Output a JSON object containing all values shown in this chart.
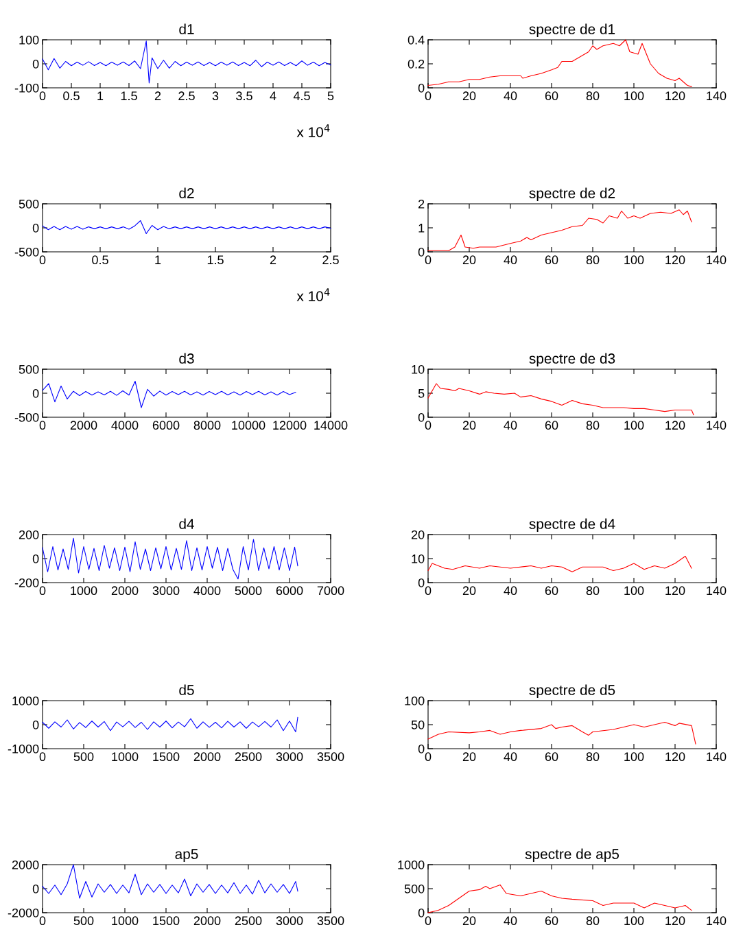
{
  "chart_data": [
    {
      "type": "line",
      "title": "d1",
      "color": "#0000ff",
      "xlim": [
        0,
        5
      ],
      "ylim": [
        -100,
        100
      ],
      "yticks": [
        -100,
        0,
        100
      ],
      "xticks": [
        0,
        0.5,
        1,
        1.5,
        2,
        2.5,
        3,
        3.5,
        4,
        4.5,
        5
      ],
      "annotations": [
        "x 10$^{4}$"
      ],
      "x": [
        0,
        0.1,
        0.2,
        0.3,
        0.4,
        0.5,
        0.6,
        0.7,
        0.8,
        0.9,
        1,
        1.1,
        1.2,
        1.3,
        1.4,
        1.5,
        1.6,
        1.7,
        1.8,
        1.85,
        1.9,
        2,
        2.1,
        2.2,
        2.3,
        2.4,
        2.5,
        2.6,
        2.7,
        2.8,
        2.9,
        3,
        3.1,
        3.2,
        3.3,
        3.4,
        3.5,
        3.6,
        3.7,
        3.8,
        3.9,
        4,
        4.1,
        4.2,
        4.3,
        4.4,
        4.5,
        4.6,
        4.7,
        4.8,
        4.9,
        5
      ],
      "values": [
        20,
        -25,
        22,
        -18,
        10,
        -8,
        7,
        -6,
        9,
        -7,
        6,
        -8,
        7,
        -6,
        8,
        -7,
        12,
        -20,
        95,
        -80,
        25,
        -20,
        15,
        -18,
        10,
        -8,
        7,
        -6,
        8,
        -7,
        6,
        -8,
        7,
        -6,
        8,
        -7,
        6,
        -8,
        15,
        -12,
        7,
        -6,
        8,
        -7,
        6,
        -8,
        12,
        -6,
        7,
        -8,
        6,
        -5
      ]
    },
    {
      "type": "line",
      "title": "spectre de d1",
      "color": "#ff0000",
      "xlim": [
        0,
        140
      ],
      "xticks": [
        0,
        20,
        40,
        60,
        80,
        100,
        120,
        140
      ],
      "ylim": [
        0,
        0.4
      ],
      "yticks": [
        0,
        0.2,
        0.4
      ],
      "x": [
        0,
        5,
        10,
        15,
        20,
        25,
        30,
        35,
        45,
        46,
        50,
        55,
        60,
        63,
        65,
        70,
        73,
        78,
        80,
        82,
        85,
        90,
        93,
        96,
        98,
        102,
        104,
        108,
        112,
        116,
        120,
        122,
        124,
        126,
        128
      ],
      "values": [
        0.02,
        0.03,
        0.05,
        0.05,
        0.07,
        0.07,
        0.09,
        0.1,
        0.1,
        0.08,
        0.1,
        0.12,
        0.15,
        0.17,
        0.22,
        0.22,
        0.25,
        0.3,
        0.35,
        0.32,
        0.35,
        0.37,
        0.35,
        0.4,
        0.3,
        0.28,
        0.37,
        0.2,
        0.12,
        0.08,
        0.06,
        0.08,
        0.05,
        0.02,
        0.01
      ]
    },
    {
      "type": "line",
      "title": "d2",
      "color": "#0000ff",
      "xlim": [
        0,
        2.5
      ],
      "ylim": [
        -500,
        500
      ],
      "yticks": [
        -500,
        0,
        500
      ],
      "xticks": [
        0,
        0.5,
        1,
        1.5,
        2,
        2.5
      ],
      "annotations": [
        "x 10$^{4}$"
      ],
      "x": [
        0,
        0.05,
        0.1,
        0.15,
        0.2,
        0.25,
        0.3,
        0.35,
        0.4,
        0.45,
        0.5,
        0.55,
        0.6,
        0.65,
        0.7,
        0.75,
        0.8,
        0.85,
        0.9,
        0.95,
        1,
        1.05,
        1.1,
        1.15,
        1.2,
        1.25,
        1.3,
        1.35,
        1.4,
        1.45,
        1.5,
        1.55,
        1.6,
        1.65,
        1.7,
        1.75,
        1.8,
        1.85,
        1.9,
        1.95,
        2,
        2.05,
        2.1,
        2.15,
        2.2,
        2.25,
        2.3,
        2.35,
        2.4,
        2.45,
        2.5
      ],
      "values": [
        40,
        -40,
        30,
        -40,
        30,
        -30,
        30,
        -30,
        20,
        -20,
        20,
        -20,
        20,
        -20,
        20,
        -30,
        40,
        150,
        -120,
        50,
        -40,
        30,
        -20,
        20,
        -20,
        20,
        -20,
        20,
        -20,
        20,
        -20,
        20,
        -20,
        20,
        -20,
        20,
        -20,
        20,
        -20,
        20,
        -20,
        20,
        -20,
        20,
        -20,
        20,
        -20,
        20,
        -20,
        20,
        -10
      ]
    },
    {
      "type": "line",
      "title": "spectre de d2",
      "color": "#ff0000",
      "xlim": [
        0,
        140
      ],
      "xticks": [
        0,
        20,
        40,
        60,
        80,
        100,
        120,
        140
      ],
      "ylim": [
        0,
        2
      ],
      "yticks": [
        0,
        1,
        2
      ],
      "x": [
        0,
        10,
        13,
        16,
        18,
        22,
        25,
        33,
        40,
        45,
        48,
        50,
        55,
        60,
        65,
        70,
        75,
        78,
        82,
        85,
        88,
        92,
        94,
        97,
        100,
        103,
        108,
        113,
        118,
        122,
        124,
        126,
        128
      ],
      "values": [
        0.05,
        0.05,
        0.2,
        0.7,
        0.2,
        0.15,
        0.2,
        0.2,
        0.35,
        0.45,
        0.6,
        0.5,
        0.7,
        0.8,
        0.9,
        1.05,
        1.1,
        1.4,
        1.35,
        1.2,
        1.5,
        1.4,
        1.7,
        1.4,
        1.5,
        1.4,
        1.6,
        1.65,
        1.6,
        1.75,
        1.55,
        1.7,
        1.25
      ]
    },
    {
      "type": "line",
      "title": "d3",
      "color": "#0000ff",
      "xlim": [
        0,
        14000
      ],
      "ylim": [
        -500,
        500
      ],
      "yticks": [
        -500,
        0,
        500
      ],
      "xticks": [
        0,
        2000,
        4000,
        6000,
        8000,
        10000,
        12000,
        14000
      ],
      "x": [
        0,
        300,
        600,
        900,
        1200,
        1500,
        1800,
        2100,
        2400,
        2700,
        3000,
        3300,
        3600,
        3900,
        4200,
        4500,
        4800,
        5100,
        5400,
        5700,
        6000,
        6300,
        6600,
        6900,
        7200,
        7500,
        7800,
        8100,
        8400,
        8700,
        9000,
        9300,
        9600,
        9900,
        10200,
        10500,
        10800,
        11100,
        11400,
        11700,
        12000,
        12300
      ],
      "values": [
        60,
        200,
        -180,
        150,
        -120,
        40,
        -50,
        35,
        -40,
        30,
        -35,
        40,
        -45,
        50,
        -40,
        250,
        -300,
        80,
        -60,
        45,
        -40,
        35,
        -30,
        40,
        -35,
        30,
        -40,
        35,
        -30,
        40,
        -35,
        30,
        -40,
        35,
        -30,
        40,
        -35,
        30,
        -40,
        35,
        -30,
        20
      ]
    },
    {
      "type": "line",
      "title": "spectre de d3",
      "color": "#ff0000",
      "xlim": [
        0,
        140
      ],
      "xticks": [
        0,
        20,
        40,
        60,
        80,
        100,
        120,
        140
      ],
      "ylim": [
        0,
        10
      ],
      "yticks": [
        0,
        5,
        10
      ],
      "x": [
        0,
        4,
        6,
        10,
        13,
        15,
        20,
        25,
        28,
        32,
        37,
        42,
        45,
        50,
        55,
        60,
        65,
        70,
        75,
        80,
        85,
        95,
        100,
        105,
        110,
        115,
        120,
        128,
        129
      ],
      "values": [
        4,
        7,
        6,
        5.8,
        5.5,
        6,
        5.5,
        4.8,
        5.3,
        5,
        4.8,
        5,
        4.2,
        4.5,
        3.8,
        3.3,
        2.5,
        3.5,
        2.8,
        2.5,
        2,
        2,
        1.8,
        1.8,
        1.5,
        1.2,
        1.5,
        1.5,
        0.5
      ]
    },
    {
      "type": "line",
      "title": "d4",
      "color": "#0000ff",
      "xlim": [
        0,
        7000
      ],
      "ylim": [
        -200,
        200
      ],
      "yticks": [
        -200,
        0,
        200
      ],
      "xticks": [
        0,
        1000,
        2000,
        3000,
        4000,
        5000,
        6000,
        7000
      ],
      "x": [
        0,
        125,
        250,
        375,
        500,
        625,
        750,
        875,
        1000,
        1125,
        1250,
        1375,
        1500,
        1625,
        1750,
        1875,
        2000,
        2125,
        2250,
        2375,
        2500,
        2625,
        2750,
        2875,
        3000,
        3125,
        3250,
        3375,
        3500,
        3625,
        3750,
        3875,
        4000,
        4125,
        4250,
        4375,
        4500,
        4625,
        4750,
        4875,
        5000,
        5125,
        5250,
        5375,
        5500,
        5625,
        5750,
        5875,
        6000,
        6125,
        6200
      ],
      "values": [
        90,
        -110,
        100,
        -95,
        80,
        -90,
        170,
        -120,
        100,
        -90,
        85,
        -100,
        110,
        -80,
        90,
        -100,
        95,
        -110,
        140,
        -90,
        80,
        -100,
        90,
        -85,
        100,
        -95,
        85,
        -90,
        150,
        -100,
        90,
        -95,
        100,
        -80,
        95,
        -100,
        85,
        -90,
        -170,
        100,
        -95,
        160,
        -100,
        90,
        -85,
        100,
        -95,
        90,
        -100,
        95,
        -60
      ]
    },
    {
      "type": "line",
      "title": "spectre de d4",
      "color": "#ff0000",
      "xlim": [
        0,
        140
      ],
      "xticks": [
        0,
        20,
        40,
        60,
        80,
        100,
        120,
        140
      ],
      "ylim": [
        0,
        20
      ],
      "yticks": [
        0,
        10,
        20
      ],
      "x": [
        0,
        2,
        8,
        12,
        18,
        25,
        30,
        40,
        50,
        55,
        60,
        65,
        70,
        75,
        85,
        90,
        95,
        100,
        105,
        110,
        115,
        120,
        125,
        128
      ],
      "values": [
        5,
        8,
        6,
        5.5,
        7,
        6,
        7,
        6,
        7,
        6,
        7,
        6.5,
        4.5,
        6.5,
        6.5,
        5,
        6,
        8,
        5.5,
        7,
        6,
        8,
        11,
        6
      ]
    },
    {
      "type": "line",
      "title": "d5",
      "color": "#0000ff",
      "xlim": [
        0,
        3500
      ],
      "ylim": [
        -1000,
        1000
      ],
      "yticks": [
        -1000,
        0,
        1000
      ],
      "xticks": [
        0,
        500,
        1000,
        1500,
        2000,
        2500,
        3000,
        3500
      ],
      "x": [
        0,
        75,
        150,
        225,
        300,
        375,
        450,
        525,
        600,
        675,
        750,
        825,
        900,
        975,
        1050,
        1125,
        1200,
        1275,
        1350,
        1425,
        1500,
        1575,
        1650,
        1725,
        1800,
        1875,
        1950,
        2025,
        2100,
        2175,
        2250,
        2325,
        2400,
        2475,
        2550,
        2625,
        2700,
        2775,
        2850,
        2925,
        3000,
        3075,
        3100
      ],
      "values": [
        100,
        -150,
        120,
        -100,
        200,
        -180,
        90,
        -120,
        150,
        -100,
        130,
        -250,
        110,
        -90,
        140,
        -120,
        100,
        -200,
        120,
        -100,
        150,
        -130,
        110,
        -90,
        250,
        -150,
        120,
        -110,
        100,
        -130,
        140,
        -100,
        120,
        -150,
        110,
        -90,
        130,
        -100,
        200,
        -250,
        150,
        -300,
        300
      ]
    },
    {
      "type": "line",
      "title": "spectre de d5",
      "color": "#ff0000",
      "xlim": [
        0,
        140
      ],
      "xticks": [
        0,
        20,
        40,
        60,
        80,
        100,
        120,
        140
      ],
      "ylim": [
        0,
        100
      ],
      "yticks": [
        0,
        50,
        100
      ],
      "x": [
        0,
        5,
        10,
        20,
        25,
        30,
        35,
        40,
        45,
        55,
        60,
        62,
        65,
        70,
        75,
        78,
        80,
        90,
        95,
        100,
        105,
        110,
        115,
        120,
        122,
        128,
        130
      ],
      "values": [
        20,
        30,
        35,
        33,
        35,
        38,
        30,
        35,
        38,
        42,
        50,
        42,
        45,
        48,
        35,
        28,
        35,
        40,
        45,
        50,
        45,
        50,
        55,
        48,
        53,
        48,
        10
      ]
    },
    {
      "type": "line",
      "title": "ap5",
      "color": "#0000ff",
      "xlim": [
        0,
        3500
      ],
      "ylim": [
        -2000,
        2000
      ],
      "yticks": [
        -2000,
        0,
        2000
      ],
      "xticks": [
        0,
        500,
        1000,
        1500,
        2000,
        2500,
        3000,
        3500
      ],
      "x": [
        0,
        75,
        150,
        225,
        300,
        375,
        450,
        525,
        600,
        675,
        750,
        825,
        900,
        975,
        1050,
        1125,
        1200,
        1275,
        1350,
        1425,
        1500,
        1575,
        1650,
        1725,
        1800,
        1875,
        1950,
        2025,
        2100,
        2175,
        2250,
        2325,
        2400,
        2475,
        2550,
        2625,
        2700,
        2775,
        2850,
        2925,
        3000,
        3075,
        3100
      ],
      "values": [
        200,
        -400,
        300,
        -500,
        400,
        2000,
        -800,
        600,
        -700,
        400,
        -300,
        350,
        -400,
        300,
        -350,
        1200,
        -500,
        400,
        -300,
        350,
        -400,
        300,
        -350,
        800,
        -600,
        400,
        -300,
        350,
        -400,
        300,
        -350,
        500,
        -400,
        300,
        -450,
        700,
        -350,
        400,
        -300,
        350,
        -400,
        600,
        -200
      ]
    },
    {
      "type": "line",
      "title": "spectre de ap5",
      "color": "#ff0000",
      "xlim": [
        0,
        140
      ],
      "xticks": [
        0,
        20,
        40,
        60,
        80,
        100,
        120,
        140
      ],
      "ylim": [
        0,
        1000
      ],
      "yticks": [
        0,
        500,
        1000
      ],
      "x": [
        0,
        5,
        10,
        15,
        20,
        25,
        28,
        30,
        35,
        38,
        45,
        55,
        60,
        65,
        70,
        80,
        85,
        90,
        100,
        105,
        110,
        115,
        120,
        125,
        128
      ],
      "values": [
        0,
        50,
        150,
        300,
        450,
        480,
        550,
        500,
        580,
        400,
        350,
        450,
        350,
        300,
        280,
        250,
        150,
        200,
        200,
        100,
        200,
        150,
        100,
        150,
        50
      ]
    }
  ]
}
